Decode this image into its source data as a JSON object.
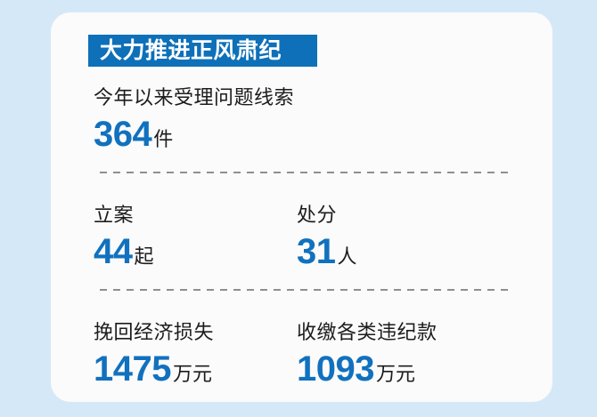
{
  "colors": {
    "background": "#d5e8f8",
    "card": "#fbfbfb",
    "badge_bg": "#0e70b8",
    "badge_text": "#ffffff",
    "number": "#1171be",
    "text": "#1c1c1c",
    "divider": "#8f8f8f"
  },
  "chart_data": {
    "type": "table",
    "title": "大力推进正风肃纪",
    "rows": [
      {
        "label": "今年以来受理问题线索",
        "value": 364,
        "unit": "件"
      },
      {
        "label": "立案",
        "value": 44,
        "unit": "起"
      },
      {
        "label": "处分",
        "value": 31,
        "unit": "人"
      },
      {
        "label": "挽回经济损失",
        "value": 1475,
        "unit": "万元"
      },
      {
        "label": "收缴各类违纪款",
        "value": 1093,
        "unit": "万元"
      }
    ]
  }
}
